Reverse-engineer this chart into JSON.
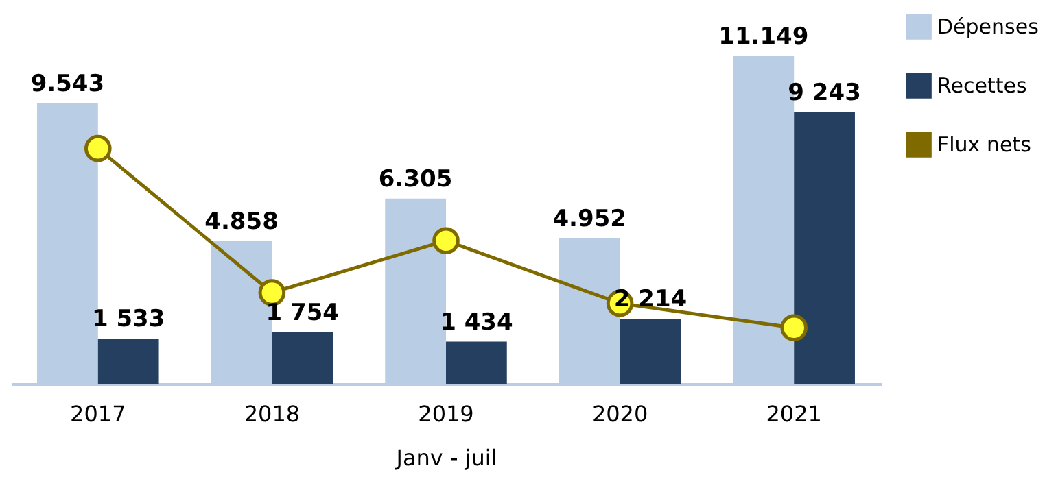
{
  "chart_data": {
    "type": "bar",
    "xlabel": "Janv - juil",
    "categories": [
      "2017",
      "2018",
      "2019",
      "2020",
      "2021"
    ],
    "series": [
      {
        "name": "Dépenses",
        "color": "#b9cde5",
        "values": [
          9543,
          4858,
          6305,
          4952,
          11149
        ],
        "value_labels": [
          "9.543",
          "4.858",
          "6.305",
          "4.952",
          "11.149"
        ]
      },
      {
        "name": "Recettes",
        "color": "#243f60",
        "values": [
          1533,
          1754,
          1434,
          2214,
          9243
        ],
        "value_labels": [
          "1 533",
          "1 754",
          "1 434",
          "2 214",
          "9 243"
        ]
      },
      {
        "name": "Flux nets",
        "type": "line",
        "color": "#7f6a00",
        "values": [
          8010,
          3104,
          4871,
          2738,
          1906
        ]
      }
    ],
    "marker": "circle",
    "legend": "right",
    "tick_labels": "x"
  }
}
